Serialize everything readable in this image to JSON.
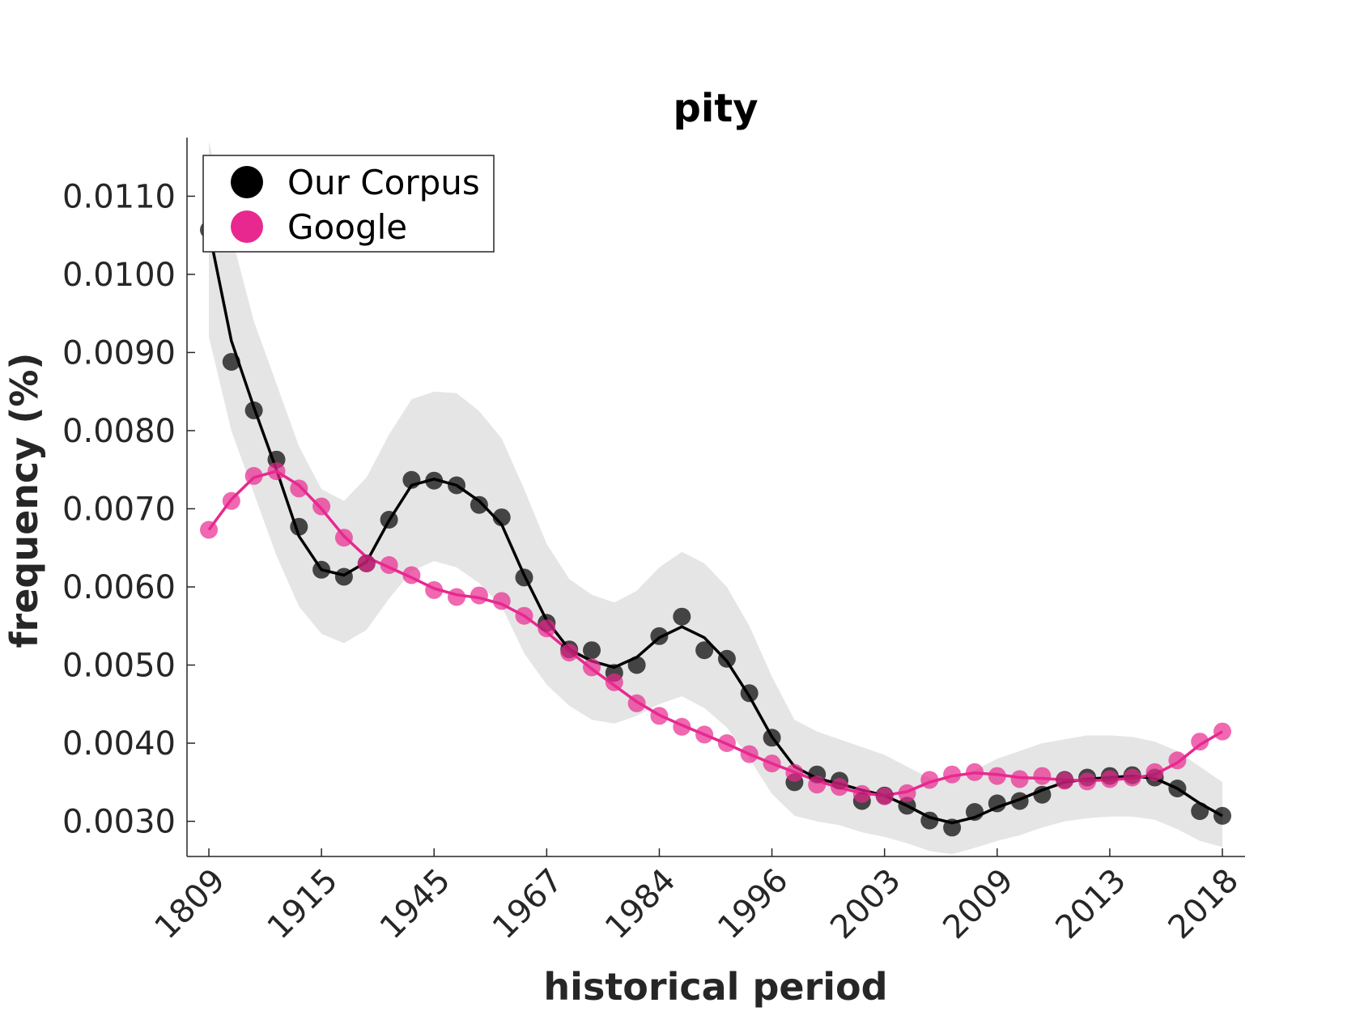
{
  "chart_data": {
    "type": "line",
    "title": "pity",
    "xlabel": "historical period",
    "ylabel": "frequency (%)",
    "ylim": [
      0.00255,
      0.01175
    ],
    "y_ticks": [
      0.003,
      0.004,
      0.005,
      0.006,
      0.007,
      0.008,
      0.009,
      0.01,
      0.011
    ],
    "y_tick_labels": [
      "0.0030",
      "0.0040",
      "0.0050",
      "0.0060",
      "0.0070",
      "0.0080",
      "0.0090",
      "0.0100",
      "0.0110"
    ],
    "x_tick_labels": [
      "1809",
      "1915",
      "1945",
      "1967",
      "1984",
      "1996",
      "2003",
      "2009",
      "2013",
      "2018"
    ],
    "legend": {
      "placement": "top-left",
      "entries": [
        "Our Corpus",
        "Google"
      ]
    },
    "colors": {
      "corpus": "#000000",
      "google": "#e8288f",
      "band": "#e5e5e5"
    },
    "series": [
      {
        "name": "Our Corpus",
        "values": [
          0.01057,
          0.00888,
          0.00826,
          0.00763,
          0.00677,
          0.00622,
          0.00613,
          0.0063,
          0.00686,
          0.00737,
          0.00736,
          0.0073,
          0.00705,
          0.00689,
          0.00612,
          0.00554,
          0.0052,
          0.00519,
          0.0049,
          0.005,
          0.00537,
          0.00562,
          0.00519,
          0.00508,
          0.00464,
          0.00407,
          0.0035,
          0.0036,
          0.00352,
          0.00326,
          0.00333,
          0.0032,
          0.00301,
          0.00292,
          0.00312,
          0.00323,
          0.00326,
          0.00334,
          0.00353,
          0.00356,
          0.00358,
          0.00359,
          0.00356,
          0.00342,
          0.00313,
          0.00307
        ],
        "smoothed": [
          0.01057,
          0.00915,
          0.0083,
          0.0075,
          0.00665,
          0.00622,
          0.00615,
          0.00632,
          0.00685,
          0.0073,
          0.00738,
          0.0073,
          0.0071,
          0.0068,
          0.00615,
          0.00557,
          0.0052,
          0.00505,
          0.00497,
          0.0051,
          0.00535,
          0.00549,
          0.00535,
          0.00505,
          0.0046,
          0.00408,
          0.0037,
          0.00355,
          0.00348,
          0.0034,
          0.00333,
          0.0032,
          0.00305,
          0.00298,
          0.00305,
          0.00318,
          0.00328,
          0.0034,
          0.0035,
          0.00354,
          0.00356,
          0.00358,
          0.00355,
          0.00342,
          0.00323,
          0.00307
        ],
        "band_upper": [
          0.0117,
          0.0105,
          0.0094,
          0.0086,
          0.0078,
          0.00725,
          0.0071,
          0.0074,
          0.00795,
          0.0084,
          0.0085,
          0.00848,
          0.00825,
          0.0079,
          0.00725,
          0.00655,
          0.0061,
          0.0059,
          0.0058,
          0.00595,
          0.00625,
          0.00645,
          0.0063,
          0.006,
          0.0055,
          0.00485,
          0.0043,
          0.00415,
          0.00405,
          0.00395,
          0.00385,
          0.0037,
          0.00355,
          0.00355,
          0.00365,
          0.0038,
          0.0039,
          0.004,
          0.00405,
          0.0041,
          0.0041,
          0.00408,
          0.00402,
          0.0039,
          0.0037,
          0.0035
        ],
        "band_lower": [
          0.0092,
          0.008,
          0.0072,
          0.0064,
          0.00575,
          0.0054,
          0.00528,
          0.00545,
          0.00585,
          0.0062,
          0.00633,
          0.00625,
          0.00605,
          0.00575,
          0.00515,
          0.00475,
          0.00448,
          0.0043,
          0.00425,
          0.00435,
          0.0045,
          0.0046,
          0.00445,
          0.0042,
          0.0038,
          0.00335,
          0.00307,
          0.003,
          0.00295,
          0.00286,
          0.0028,
          0.00272,
          0.00262,
          0.00258,
          0.00266,
          0.00275,
          0.00282,
          0.00292,
          0.003,
          0.00304,
          0.00306,
          0.00306,
          0.00302,
          0.0029,
          0.00275,
          0.00267
        ]
      },
      {
        "name": "Google",
        "values": [
          0.00673,
          0.0071,
          0.00742,
          0.00748,
          0.00726,
          0.00703,
          0.00663,
          0.0063,
          0.00628,
          0.00615,
          0.00596,
          0.00587,
          0.00589,
          0.00582,
          0.00563,
          0.00547,
          0.00516,
          0.00497,
          0.00478,
          0.00451,
          0.00435,
          0.00421,
          0.00411,
          0.004,
          0.00386,
          0.00374,
          0.00362,
          0.00347,
          0.00344,
          0.00335,
          0.00332,
          0.00336,
          0.00353,
          0.0036,
          0.00363,
          0.00358,
          0.00354,
          0.00358,
          0.00352,
          0.00351,
          0.00354,
          0.00356,
          0.00363,
          0.00378,
          0.00402,
          0.00415
        ],
        "smoothed": [
          0.00673,
          0.00712,
          0.0074,
          0.00748,
          0.0073,
          0.007,
          0.00665,
          0.00638,
          0.00625,
          0.00612,
          0.00598,
          0.0059,
          0.00586,
          0.00578,
          0.00563,
          0.00542,
          0.00518,
          0.00495,
          0.00474,
          0.00453,
          0.00436,
          0.00423,
          0.00411,
          0.00399,
          0.00386,
          0.00374,
          0.00363,
          0.00352,
          0.00343,
          0.00336,
          0.00333,
          0.00338,
          0.0035,
          0.00358,
          0.00362,
          0.0036,
          0.00356,
          0.00355,
          0.00353,
          0.00352,
          0.00353,
          0.00355,
          0.0036,
          0.00375,
          0.00398,
          0.00415
        ]
      }
    ]
  }
}
